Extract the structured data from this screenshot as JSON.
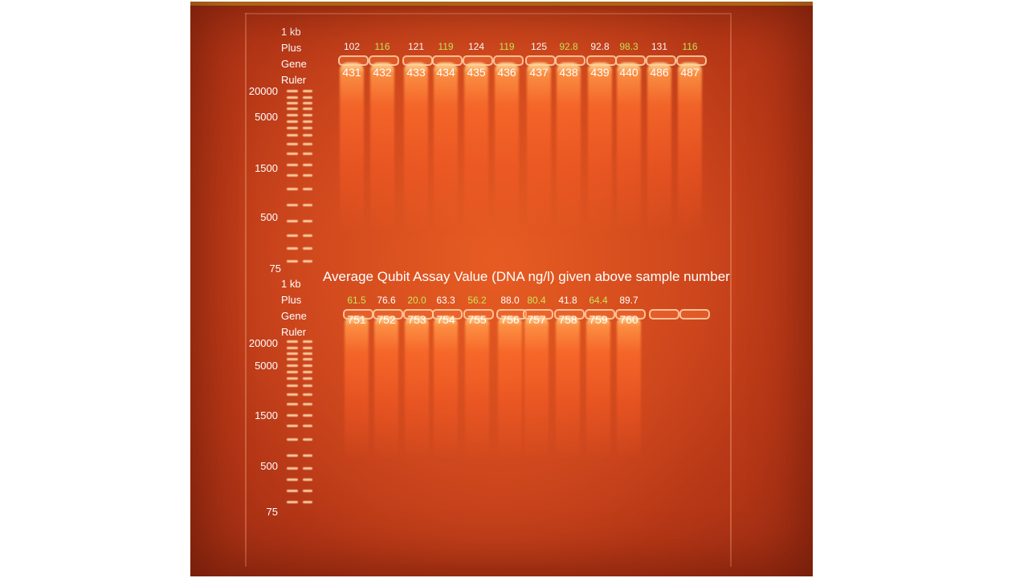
{
  "caption": "Average Qubit Assay Value (DNA ng/l) given above sample number",
  "ladder_label_lines": [
    "1 kb",
    "Plus",
    "Gene",
    "Ruler"
  ],
  "bp_markers": [
    "20000",
    "5000",
    "1500",
    "500",
    "75"
  ],
  "colors": {
    "green_value": "#c6e65a",
    "white_value": "#ffffff"
  },
  "top_row": {
    "lanes": [
      {
        "value": "102",
        "sample": "431",
        "color": "white"
      },
      {
        "value": "116",
        "sample": "432",
        "color": "green"
      },
      {
        "value": "121",
        "sample": "433",
        "color": "white"
      },
      {
        "value": "119",
        "sample": "434",
        "color": "green"
      },
      {
        "value": "124",
        "sample": "435",
        "color": "white"
      },
      {
        "value": "119",
        "sample": "436",
        "color": "green"
      },
      {
        "value": "125",
        "sample": "437",
        "color": "white"
      },
      {
        "value": "92.8",
        "sample": "438",
        "color": "green"
      },
      {
        "value": "92.8",
        "sample": "439",
        "color": "white"
      },
      {
        "value": "98.3",
        "sample": "440",
        "color": "green"
      },
      {
        "value": "131",
        "sample": "486",
        "color": "white"
      },
      {
        "value": "116",
        "sample": "487",
        "color": "green"
      }
    ]
  },
  "bottom_row": {
    "lanes": [
      {
        "value": "61.5",
        "sample": "751",
        "color": "green"
      },
      {
        "value": "76.6",
        "sample": "752",
        "color": "white"
      },
      {
        "value": "20.0",
        "sample": "753",
        "color": "green"
      },
      {
        "value": "63.3",
        "sample": "754",
        "color": "white"
      },
      {
        "value": "56.2",
        "sample": "755",
        "color": "green"
      },
      {
        "value": "88.0",
        "sample": "756",
        "color": "white"
      },
      {
        "value": "80.4",
        "sample": "757",
        "color": "green"
      },
      {
        "value": "41.8",
        "sample": "758",
        "color": "white"
      },
      {
        "value": "64.4",
        "sample": "759",
        "color": "green"
      },
      {
        "value": "89.7",
        "sample": "760",
        "color": "white"
      }
    ]
  }
}
